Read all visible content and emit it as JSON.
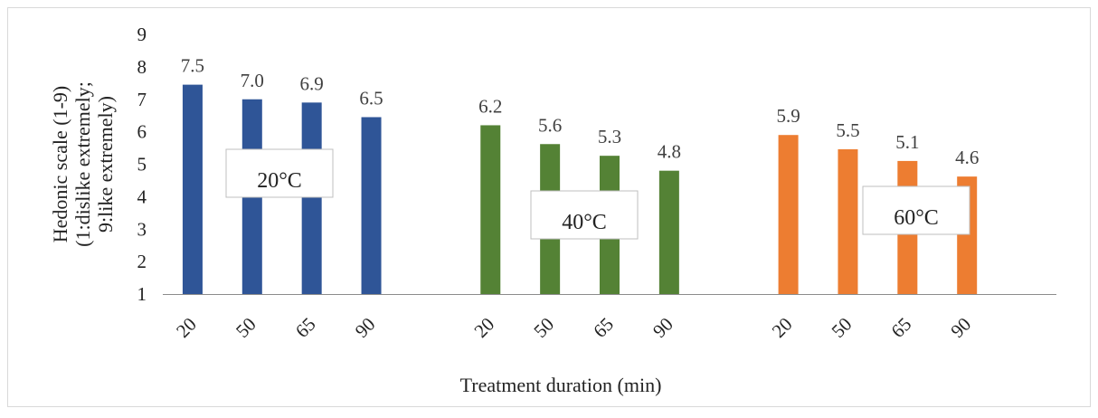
{
  "chart_data": {
    "type": "bar",
    "xlabel": "Treatment duration (min)",
    "ylabel_lines": [
      "Hedonic scale (1-9)",
      "(1:dislike extremely;",
      "9:like extremely)"
    ],
    "ylim": [
      1,
      9
    ],
    "yticks": [
      "1",
      "2",
      "3",
      "4",
      "5",
      "6",
      "7",
      "8",
      "9"
    ],
    "grid": false,
    "legend": "none",
    "groups": [
      {
        "name": "20°C",
        "color": "#2f5597",
        "categories": [
          "20",
          "50",
          "65",
          "90"
        ],
        "values": [
          7.45,
          7.0,
          6.9,
          6.45
        ],
        "labels": [
          "7.5",
          "7.0",
          "6.9",
          "6.5"
        ]
      },
      {
        "name": "40°C",
        "color": "#548235",
        "categories": [
          "20",
          "50",
          "65",
          "90"
        ],
        "values": [
          6.2,
          5.62,
          5.26,
          4.8
        ],
        "labels": [
          "6.2",
          "5.6",
          "5.3",
          "4.8"
        ]
      },
      {
        "name": "60°C",
        "color": "#ed7d31",
        "categories": [
          "20",
          "50",
          "65",
          "90"
        ],
        "values": [
          5.9,
          5.46,
          5.1,
          4.62
        ],
        "labels": [
          "5.9",
          "5.5",
          "5.1",
          "4.6"
        ]
      }
    ]
  }
}
